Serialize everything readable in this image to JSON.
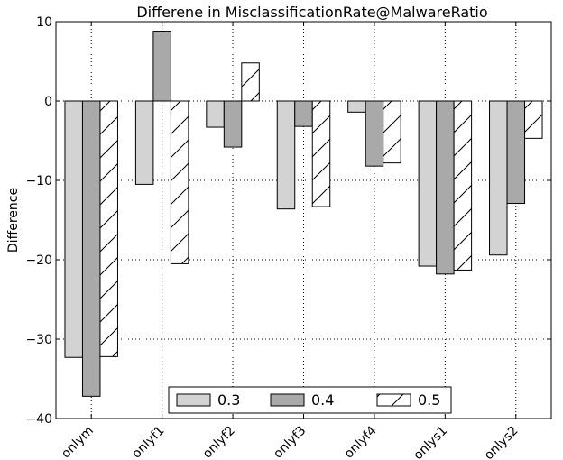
{
  "chart_data": {
    "type": "bar",
    "title": "Differene in MisclassificationRate@MalwareRatio",
    "xlabel": "",
    "ylabel": "Difference",
    "ylim": [
      -40,
      10
    ],
    "yticks": [
      10,
      0,
      -10,
      -20,
      -30,
      -40
    ],
    "ytick_labels": [
      "10",
      "0",
      "−10",
      "−20",
      "−30",
      "−40"
    ],
    "grid": true,
    "legend_position": "bottom-center",
    "categories": [
      "onlym",
      "onlyf1",
      "onlyf2",
      "onlyf3",
      "onlyf4",
      "onlys1",
      "onlys2"
    ],
    "series": [
      {
        "name": "0.3",
        "fill": "#d3d3d3",
        "hatch": false,
        "values": [
          -32.3,
          -10.5,
          -3.3,
          -13.6,
          -1.4,
          -20.8,
          -19.4
        ]
      },
      {
        "name": "0.4",
        "fill": "#a9a9a9",
        "hatch": false,
        "values": [
          -37.2,
          8.8,
          -5.8,
          -3.2,
          -8.2,
          -21.8,
          -12.9
        ]
      },
      {
        "name": "0.5",
        "fill": "#ffffff",
        "hatch": true,
        "values": [
          -32.2,
          -20.5,
          4.8,
          -13.3,
          -7.8,
          -21.3,
          -4.7
        ]
      }
    ]
  }
}
